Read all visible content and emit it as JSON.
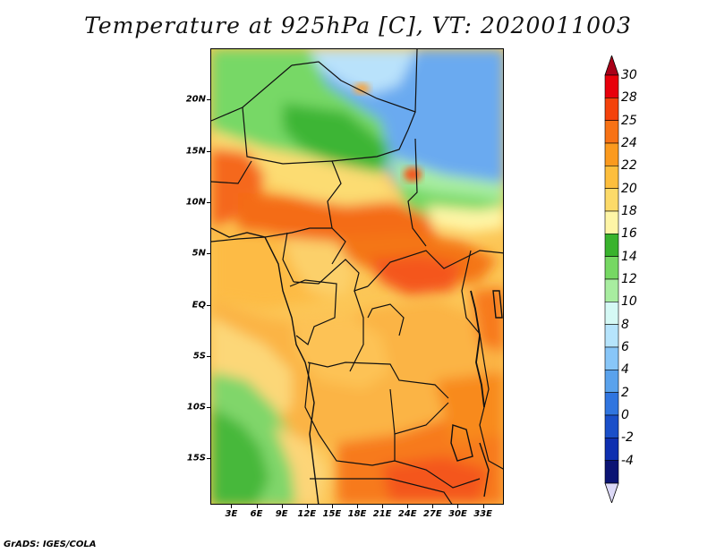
{
  "title": "Temperature at 925hPa [C], VT: 2020011003",
  "credit": "GrADS: IGES/COLA",
  "map": {
    "lat_labels": [
      "20N",
      "15N",
      "10N",
      "5N",
      "EQ",
      "5S",
      "10S",
      "15S"
    ],
    "lat_values": [
      20,
      15,
      10,
      5,
      0,
      -5,
      -10,
      -15
    ],
    "lon_labels": [
      "3E",
      "6E",
      "9E",
      "12E",
      "15E",
      "18E",
      "21E",
      "24E",
      "27E",
      "30E",
      "33E"
    ],
    "lon_values": [
      3,
      6,
      9,
      12,
      15,
      18,
      21,
      24,
      27,
      30,
      33
    ],
    "lon_range": [
      0.5,
      35.5
    ],
    "lat_range": [
      -19.5,
      25
    ]
  },
  "colorbar": {
    "labels": [
      "30",
      "28",
      "25",
      "24",
      "22",
      "20",
      "18",
      "16",
      "14",
      "12",
      "10",
      "8",
      "6",
      "4",
      "2",
      "0",
      "-2",
      "-4"
    ],
    "colors": [
      "#e8000b",
      "#f4420b",
      "#f77215",
      "#fb9a1e",
      "#fdbe3d",
      "#fcda69",
      "#fef5a6",
      "#39b32d",
      "#76d863",
      "#a8eda0",
      "#d5f9f5",
      "#b6e4fc",
      "#88c6f8",
      "#5aa2ec",
      "#3075df",
      "#1a4fc9",
      "#0e2fb0",
      "#0b1474"
    ],
    "top_color": "#a90018",
    "bottom_color": "#dcd9f7"
  }
}
